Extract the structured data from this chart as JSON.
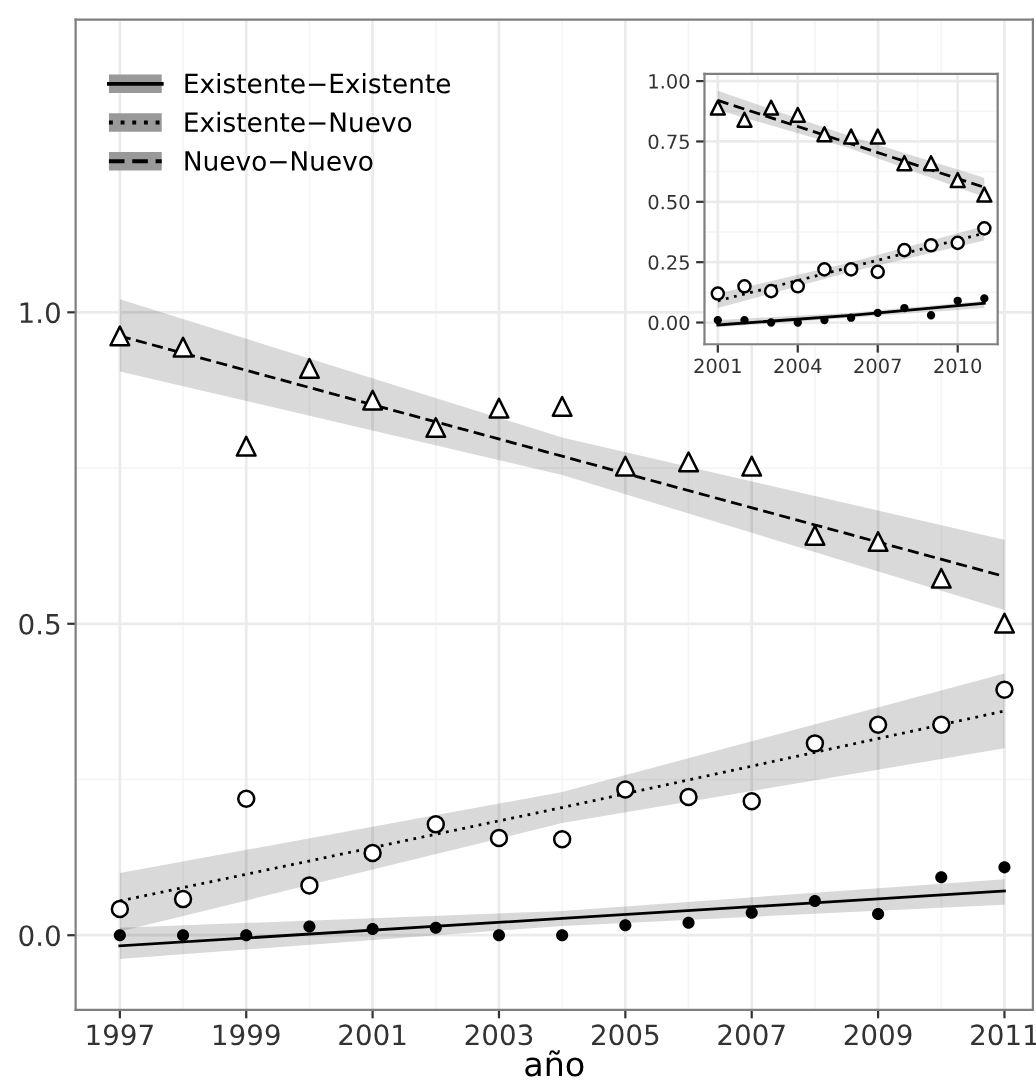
{
  "chart_data": [
    {
      "type": "scatter",
      "xlabel": "año",
      "xlim": [
        1996.3,
        2011.45
      ],
      "ylim": [
        -0.12,
        1.47
      ],
      "xticks": [
        1997,
        1999,
        2001,
        2003,
        2005,
        2007,
        2009,
        2011
      ],
      "yticks": [
        {
          "value": 0,
          "label": "0.0"
        },
        {
          "value": 0.5,
          "label": "0.5"
        },
        {
          "value": 1,
          "label": "1.0"
        }
      ],
      "grid": true,
      "legend": "top left",
      "series": [
        {
          "marker": "triangle",
          "color": "#ffffff",
          "x": [
            1997,
            1998,
            1999,
            2000,
            2001,
            2002,
            2003,
            2004,
            2005,
            2006,
            2007,
            2008,
            2009,
            2010,
            2011
          ],
          "values": [
            0.962,
            0.944,
            0.785,
            0.91,
            0.859,
            0.815,
            0.846,
            0.849,
            0.753,
            0.76,
            0.753,
            0.642,
            0.632,
            0.573,
            0.501
          ]
        },
        {
          "marker": "circle",
          "color": "#ffffff",
          "x": [
            1997,
            1998,
            1999,
            2000,
            2001,
            2002,
            2003,
            2004,
            2005,
            2006,
            2007,
            2008,
            2009,
            2010,
            2011
          ],
          "values": [
            0.042,
            0.058,
            0.219,
            0.08,
            0.132,
            0.178,
            0.156,
            0.154,
            0.234,
            0.222,
            0.215,
            0.308,
            0.338,
            0.338,
            0.394
          ]
        },
        {
          "marker": "circle",
          "color": "#000000",
          "x": [
            1997,
            1998,
            1999,
            2000,
            2001,
            2002,
            2003,
            2004,
            2005,
            2006,
            2007,
            2008,
            2009,
            2010,
            2011
          ],
          "values": [
            0,
            0,
            0,
            0.014,
            0.01,
            0.012,
            0,
            0,
            0.016,
            0.02,
            0.036,
            0.055,
            0.034,
            0.093,
            0.109
          ]
        },
        {
          "type": "line",
          "name": "Existente−Existente",
          "line_style": "solid",
          "color": "#000000",
          "x": [
            1997,
            2004,
            2011
          ],
          "values": [
            -0.017,
            0.027,
            0.071
          ],
          "lower": [
            -0.038,
            0.015,
            0.049
          ],
          "upper": [
            0.012,
            0.039,
            0.09
          ]
        },
        {
          "type": "line",
          "name": "Existente−Nuevo",
          "line_style": "dotted",
          "color": "#000000",
          "x": [
            1997,
            2004,
            2011
          ],
          "values": [
            0.055,
            0.205,
            0.36
          ],
          "lower": [
            0.006,
            0.18,
            0.3
          ],
          "upper": [
            0.1,
            0.23,
            0.42
          ]
        },
        {
          "type": "line",
          "name": "Nuevo−Nuevo",
          "line_style": "dashed",
          "color": "#000000",
          "x": [
            1997,
            2004,
            2011
          ],
          "values": [
            0.962,
            0.769,
            0.576
          ],
          "lower": [
            0.905,
            0.739,
            0.522
          ],
          "upper": [
            1.021,
            0.799,
            0.635
          ]
        }
      ]
    },
    {
      "type": "scatter",
      "xlim": [
        2000.5,
        2011.5
      ],
      "ylim": [
        -0.09,
        1.03
      ],
      "xticks": [
        2001,
        2004,
        2007,
        2010
      ],
      "yticks": [
        {
          "value": 0,
          "label": "0.00"
        },
        {
          "value": 0.25,
          "label": "0.25"
        },
        {
          "value": 0.5,
          "label": "0.50"
        },
        {
          "value": 0.75,
          "label": "0.75"
        },
        {
          "value": 1,
          "label": "1.00"
        }
      ],
      "grid": true,
      "series": [
        {
          "marker": "triangle",
          "color": "#ffffff",
          "x": [
            2001,
            2002,
            2003,
            2004,
            2005,
            2006,
            2007,
            2008,
            2009,
            2010,
            2011
          ],
          "values": [
            0.89,
            0.84,
            0.89,
            0.86,
            0.78,
            0.77,
            0.77,
            0.66,
            0.66,
            0.59,
            0.53
          ]
        },
        {
          "marker": "circle",
          "color": "#ffffff",
          "x": [
            2001,
            2002,
            2003,
            2004,
            2005,
            2006,
            2007,
            2008,
            2009,
            2010,
            2011
          ],
          "values": [
            0.12,
            0.15,
            0.13,
            0.15,
            0.22,
            0.22,
            0.21,
            0.3,
            0.32,
            0.33,
            0.39
          ]
        },
        {
          "marker": "circle",
          "color": "#000000",
          "x": [
            2001,
            2002,
            2003,
            2004,
            2005,
            2006,
            2007,
            2008,
            2009,
            2010,
            2011
          ],
          "values": [
            0.01,
            0.01,
            0,
            0,
            0.01,
            0.02,
            0.04,
            0.06,
            0.03,
            0.09,
            0.1
          ]
        },
        {
          "type": "line",
          "line_style": "solid",
          "color": "#000000",
          "x": [
            2001,
            2006,
            2011
          ],
          "values": [
            -0.01,
            0.03,
            0.08
          ],
          "lower": [
            -0.02,
            0.02,
            0.06
          ],
          "upper": [
            0.01,
            0.04,
            0.09
          ]
        },
        {
          "type": "line",
          "line_style": "dotted",
          "color": "#000000",
          "x": [
            2001,
            2006,
            2011
          ],
          "values": [
            0.09,
            0.23,
            0.37
          ],
          "lower": [
            0.06,
            0.21,
            0.34
          ],
          "upper": [
            0.12,
            0.25,
            0.4
          ]
        },
        {
          "type": "line",
          "line_style": "dashed",
          "color": "#000000",
          "x": [
            2001,
            2006,
            2011
          ],
          "values": [
            0.92,
            0.74,
            0.56
          ],
          "lower": [
            0.88,
            0.72,
            0.52
          ],
          "upper": [
            0.96,
            0.77,
            0.6
          ]
        }
      ]
    }
  ]
}
